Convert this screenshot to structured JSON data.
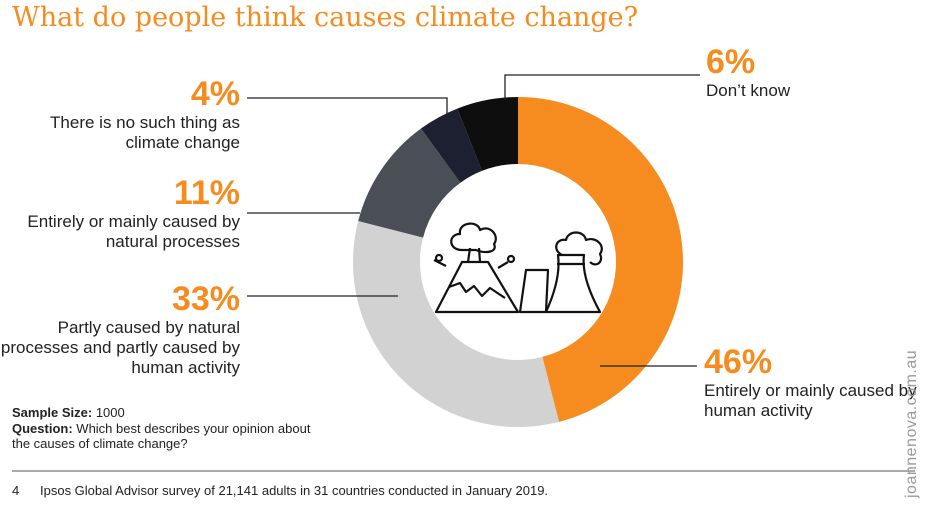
{
  "chart_data": {
    "type": "pie",
    "title": "What do people think causes climate change?",
    "categories": [
      "Entirely or mainly caused by human activity",
      "Partly caused by natural processes and partly caused by human activity",
      "Entirely or mainly caused by natural processes",
      "There is no such thing as climate change",
      "Don’t know"
    ],
    "values": [
      46,
      33,
      11,
      4,
      6
    ],
    "value_labels": [
      "46%",
      "33%",
      "11%",
      "4%",
      "6%"
    ],
    "colors": [
      "#f68b1f",
      "#d2d2d2",
      "#4a4f57",
      "#1c2030",
      "#0e0e0e"
    ],
    "donut": true,
    "sample_size_label": "Sample Size:",
    "sample_size": 1000,
    "question_label": "Question:",
    "question": "Which best describes your opinion about the causes of climate change?",
    "page_number": 4,
    "source": "Ipsos Global Advisor survey of 21,141 adults in 31 countries conducted in January 2019.",
    "watermark": "joannenova.com.au"
  }
}
